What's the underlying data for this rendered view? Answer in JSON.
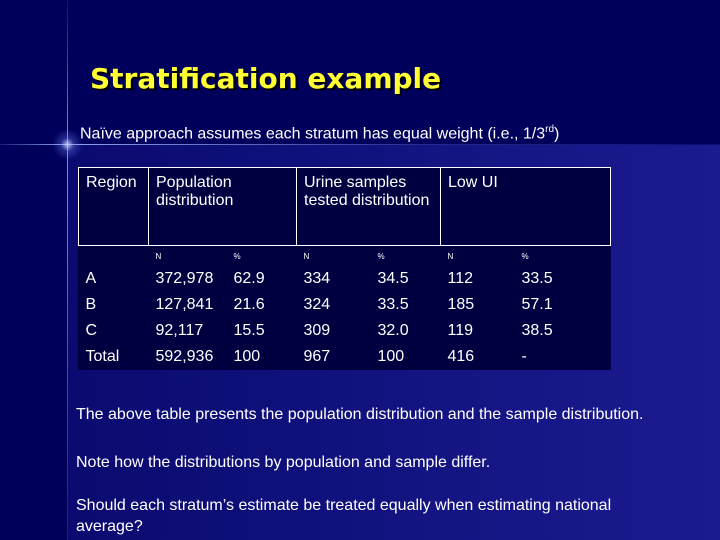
{
  "title": "Stratification example",
  "intro": {
    "text": "Naïve approach assumes each stratum has equal weight (i.e., 1/3",
    "superscript": "rd",
    "closing": ")"
  },
  "table": {
    "header": [
      "Region",
      "Population distribution",
      "Urine samples tested distribution",
      "Low UI"
    ],
    "subheader": [
      "N",
      "%",
      "N",
      "%",
      "N",
      "%"
    ],
    "rows": [
      [
        "A",
        "372,978",
        "62.9",
        "334",
        "34.5",
        "112",
        "33.5"
      ],
      [
        "B",
        "127,841",
        "21.6",
        "324",
        "33.5",
        "185",
        "57.1"
      ],
      [
        "C",
        "92,117",
        "15.5",
        "309",
        "32.0",
        "119",
        "38.5"
      ],
      [
        "Total",
        "592,936",
        "100",
        "967",
        "100",
        "416",
        "-"
      ]
    ]
  },
  "paragraphs": [
    "The above table presents the population distribution and the sample distribution.",
    "Note how the distributions by population and sample differ.",
    "Should each stratum’s estimate be treated equally when estimating national average?"
  ]
}
